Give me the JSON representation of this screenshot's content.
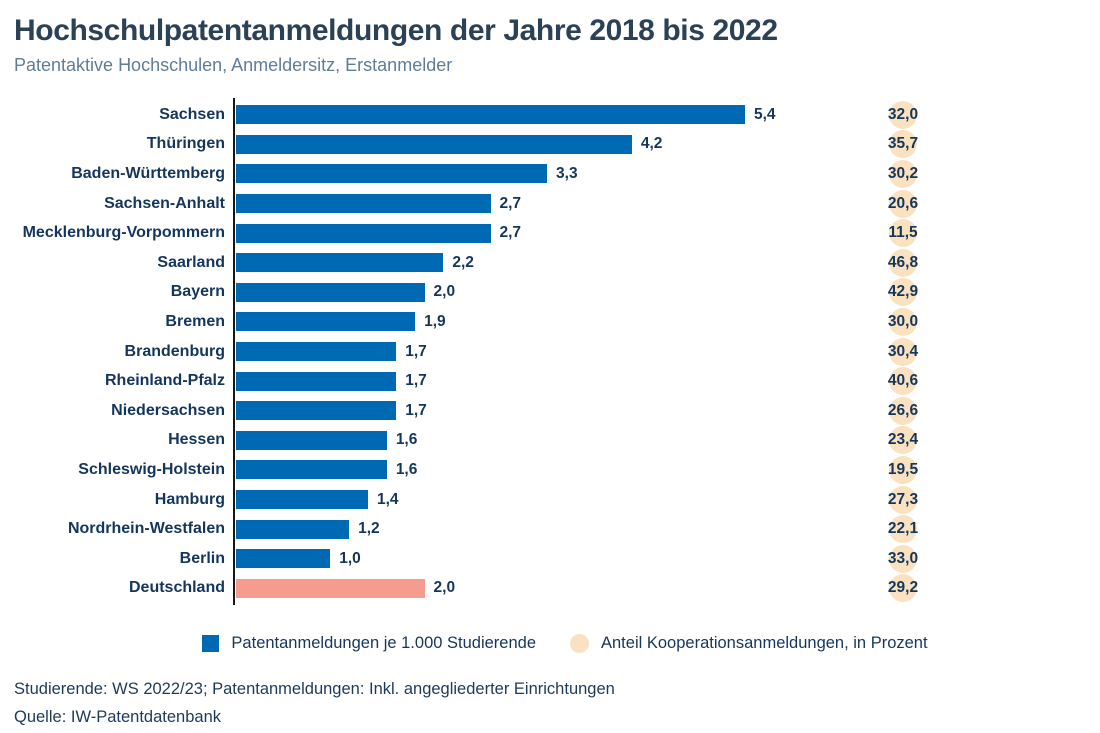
{
  "header": {
    "title": "Hochschulpatentanmeldungen der Jahre 2018 bis 2022",
    "subtitle": "Patentaktive Hochschulen, Anmeldersitz, Erstanmelder"
  },
  "chart_data": {
    "type": "bar",
    "orientation": "horizontal",
    "title": "Hochschulpatentanmeldungen der Jahre 2018 bis 2022",
    "subtitle": "Patentaktive Hochschulen, Anmeldersitz, Erstanmelder",
    "categories": [
      "Sachsen",
      "Thüringen",
      "Baden-Württemberg",
      "Sachsen-Anhalt",
      "Mecklenburg-Vorpommern",
      "Saarland",
      "Bayern",
      "Bremen",
      "Brandenburg",
      "Rheinland-Pfalz",
      "Niedersachsen",
      "Hessen",
      "Schleswig-Holstein",
      "Hamburg",
      "Nordrhein-Westfalen",
      "Berlin",
      "Deutschland"
    ],
    "series": [
      {
        "name": "Patentanmeldungen je 1.000 Studierende",
        "type": "bar",
        "color": "#0069B4",
        "values": [
          5.4,
          4.2,
          3.3,
          2.7,
          2.7,
          2.2,
          2.0,
          1.9,
          1.7,
          1.7,
          1.7,
          1.6,
          1.6,
          1.4,
          1.2,
          1.0,
          2.0
        ],
        "labels": [
          "5,4",
          "4,2",
          "3,3",
          "2,7",
          "2,7",
          "2,2",
          "2,0",
          "1,9",
          "1,7",
          "1,7",
          "1,7",
          "1,6",
          "1,6",
          "1,4",
          "1,2",
          "1,0",
          "2,0"
        ]
      },
      {
        "name": "Anteil Kooperationsanmeldungen, in Prozent",
        "type": "point",
        "color": "#FAE2C0",
        "values": [
          32.0,
          35.7,
          30.2,
          20.6,
          11.5,
          46.8,
          42.9,
          30.0,
          30.4,
          40.6,
          26.6,
          23.4,
          19.5,
          27.3,
          22.1,
          33.0,
          29.2
        ],
        "labels": [
          "32,0",
          "35,7",
          "30,2",
          "20,6",
          "11,5",
          "46,8",
          "42,9",
          "30,0",
          "30,4",
          "40,6",
          "26,6",
          "23,4",
          "19,5",
          "27,3",
          "22,1",
          "33,0",
          "29,2"
        ]
      }
    ],
    "xlim": [
      0,
      5.4
    ],
    "grid": false,
    "legend_position": "bottom",
    "highlight_category": "Deutschland",
    "highlight_color": "#F59C8E",
    "value_decimal_separator": ","
  },
  "colors": {
    "bar_blue": "#0069B4",
    "bar_highlight": "#F59C8E",
    "coop_circle": "#FAE2C0",
    "text_navy": "#14365C",
    "title": "#2A4156",
    "subtitle": "#5F7D98",
    "axis": "#161616"
  },
  "footnotes": {
    "note": "Studierende: WS 2022/23; Patentanmeldungen: Inkl. angegliederter Einrichtungen",
    "source": "Quelle: IW-Patentdatenbank"
  }
}
